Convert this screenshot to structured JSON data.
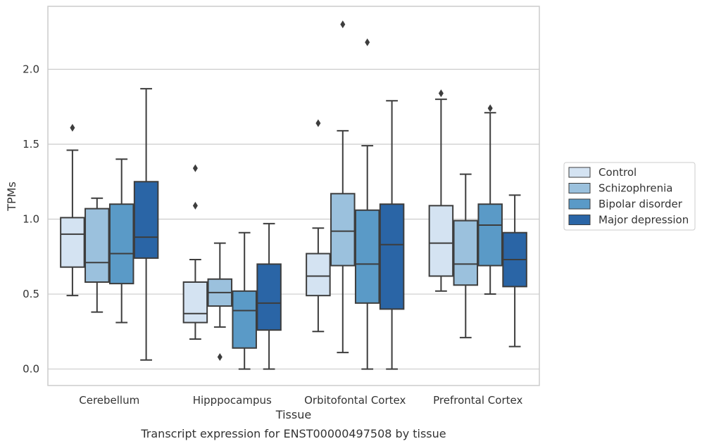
{
  "chart_data": {
    "type": "box",
    "title": "",
    "caption": "Transcript expression for ENST00000497508 by tissue",
    "xlabel": "Tissue",
    "ylabel": "TPMs",
    "ylim": [
      -0.11,
      2.42
    ],
    "yticks": [
      0.0,
      0.5,
      1.0,
      1.5,
      2.0
    ],
    "ytick_labels": [
      "0.0",
      "0.5",
      "1.0",
      "1.5",
      "2.0"
    ],
    "grid": "horizontal",
    "legend_position": "right",
    "categories": [
      "Cerebellum",
      "Hipppocampus",
      "Orbitofontal Cortex",
      "Prefrontal Cortex"
    ],
    "series": [
      {
        "name": "Control",
        "color": "#d4e3f2",
        "boxes": [
          {
            "whisker_low": 0.49,
            "q1": 0.68,
            "median": 0.9,
            "q3": 1.01,
            "whisker_high": 1.46,
            "outliers": [
              1.61
            ]
          },
          {
            "whisker_low": 0.2,
            "q1": 0.31,
            "median": 0.37,
            "q3": 0.58,
            "whisker_high": 0.73,
            "outliers": [
              1.09,
              1.34
            ]
          },
          {
            "whisker_low": 0.25,
            "q1": 0.49,
            "median": 0.62,
            "q3": 0.77,
            "whisker_high": 0.94,
            "outliers": [
              1.64
            ]
          },
          {
            "whisker_low": 0.52,
            "q1": 0.62,
            "median": 0.84,
            "q3": 1.09,
            "whisker_high": 1.8,
            "outliers": [
              1.84
            ]
          }
        ]
      },
      {
        "name": "Schizophrenia",
        "color": "#9bc1dd",
        "boxes": [
          {
            "whisker_low": 0.38,
            "q1": 0.58,
            "median": 0.71,
            "q3": 1.07,
            "whisker_high": 1.14,
            "outliers": []
          },
          {
            "whisker_low": 0.28,
            "q1": 0.42,
            "median": 0.51,
            "q3": 0.6,
            "whisker_high": 0.84,
            "outliers": [
              0.08
            ]
          },
          {
            "whisker_low": 0.11,
            "q1": 0.69,
            "median": 0.92,
            "q3": 1.17,
            "whisker_high": 1.59,
            "outliers": [
              2.3
            ]
          },
          {
            "whisker_low": 0.21,
            "q1": 0.56,
            "median": 0.7,
            "q3": 0.99,
            "whisker_high": 1.3,
            "outliers": []
          }
        ]
      },
      {
        "name": "Bipolar disorder",
        "color": "#5a9ac7",
        "boxes": [
          {
            "whisker_low": 0.31,
            "q1": 0.57,
            "median": 0.77,
            "q3": 1.1,
            "whisker_high": 1.4,
            "outliers": []
          },
          {
            "whisker_low": 0.0,
            "q1": 0.14,
            "median": 0.39,
            "q3": 0.52,
            "whisker_high": 0.91,
            "outliers": []
          },
          {
            "whisker_low": 0.0,
            "q1": 0.44,
            "median": 0.7,
            "q3": 1.06,
            "whisker_high": 1.49,
            "outliers": [
              2.18
            ]
          },
          {
            "whisker_low": 0.5,
            "q1": 0.69,
            "median": 0.96,
            "q3": 1.1,
            "whisker_high": 1.71,
            "outliers": [
              1.74
            ]
          }
        ]
      },
      {
        "name": "Major depression",
        "color": "#2a65a6",
        "boxes": [
          {
            "whisker_low": 0.06,
            "q1": 0.74,
            "median": 0.88,
            "q3": 1.25,
            "whisker_high": 1.87,
            "outliers": []
          },
          {
            "whisker_low": 0.0,
            "q1": 0.26,
            "median": 0.44,
            "q3": 0.7,
            "whisker_high": 0.97,
            "outliers": []
          },
          {
            "whisker_low": 0.0,
            "q1": 0.4,
            "median": 0.83,
            "q3": 1.1,
            "whisker_high": 1.79,
            "outliers": []
          },
          {
            "whisker_low": 0.15,
            "q1": 0.55,
            "median": 0.73,
            "q3": 0.91,
            "whisker_high": 1.16,
            "outliers": []
          }
        ]
      }
    ]
  }
}
